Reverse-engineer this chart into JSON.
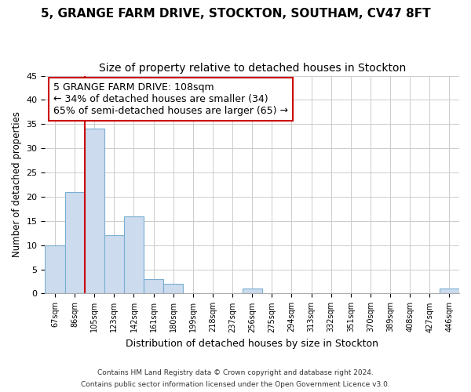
{
  "title1": "5, GRANGE FARM DRIVE, STOCKTON, SOUTHAM, CV47 8FT",
  "title2": "Size of property relative to detached houses in Stockton",
  "xlabel": "Distribution of detached houses by size in Stockton",
  "ylabel": "Number of detached properties",
  "footer1": "Contains HM Land Registry data © Crown copyright and database right 2024.",
  "footer2": "Contains public sector information licensed under the Open Government Licence v3.0.",
  "bin_labels": [
    "67sqm",
    "86sqm",
    "105sqm",
    "123sqm",
    "142sqm",
    "161sqm",
    "180sqm",
    "199sqm",
    "218sqm",
    "237sqm",
    "256sqm",
    "275sqm",
    "294sqm",
    "313sqm",
    "332sqm",
    "351sqm",
    "370sqm",
    "389sqm",
    "408sqm",
    "427sqm",
    "446sqm"
  ],
  "bar_values": [
    10,
    21,
    34,
    12,
    16,
    3,
    2,
    0,
    0,
    0,
    1,
    0,
    0,
    0,
    0,
    0,
    0,
    0,
    0,
    0,
    1
  ],
  "bar_color": "#ccdcee",
  "bar_edgecolor": "#7aaed0",
  "annotation_text": "5 GRANGE FARM DRIVE: 108sqm\n← 34% of detached houses are smaller (34)\n65% of semi-detached houses are larger (65) →",
  "vline_x": 2.0,
  "annotation_box_edgecolor": "#cc0000",
  "vline_color": "#cc0000",
  "ylim": [
    0,
    45
  ],
  "background_color": "#ffffff",
  "grid_color": "#cccccc",
  "title1_fontsize": 11,
  "title2_fontsize": 10
}
